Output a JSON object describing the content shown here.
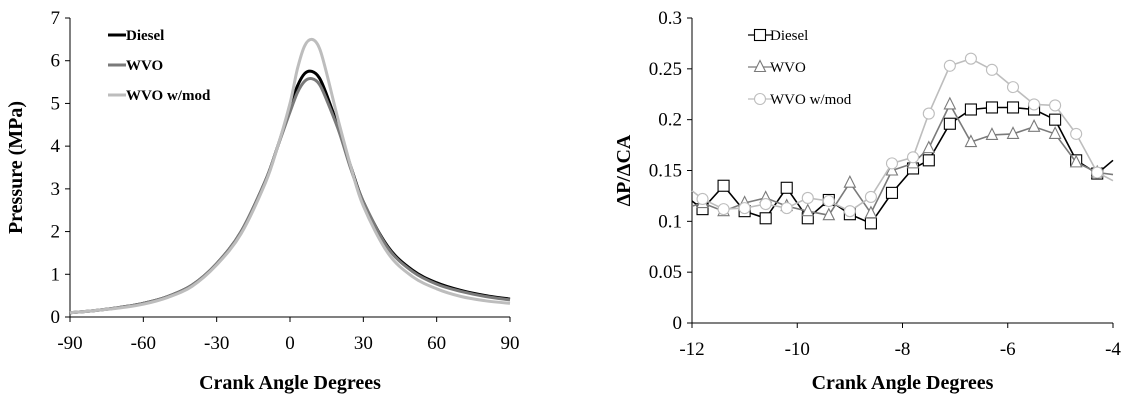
{
  "chart_data": [
    {
      "type": "line",
      "title": "",
      "xlabel": "Crank Angle Degrees",
      "ylabel": "Pressure (MPa)",
      "xlim": [
        -90,
        90
      ],
      "ylim": [
        0,
        7
      ],
      "xticks": [
        -90,
        -60,
        -30,
        0,
        30,
        60,
        90
      ],
      "yticks": [
        0,
        1,
        2,
        3,
        4,
        5,
        6,
        7
      ],
      "grid": false,
      "legend_position": "top-left",
      "series": [
        {
          "name": "Diesel",
          "color": "#000000",
          "x": [
            -90,
            -80,
            -70,
            -60,
            -50,
            -40,
            -30,
            -20,
            -10,
            -5,
            0,
            3,
            6,
            9,
            12,
            15,
            20,
            25,
            30,
            40,
            50,
            60,
            70,
            80,
            90
          ],
          "y": [
            0.1,
            0.15,
            0.22,
            0.32,
            0.48,
            0.75,
            1.25,
            2.0,
            3.2,
            4.0,
            4.9,
            5.4,
            5.7,
            5.75,
            5.6,
            5.2,
            4.4,
            3.5,
            2.7,
            1.65,
            1.1,
            0.8,
            0.62,
            0.5,
            0.42
          ]
        },
        {
          "name": "WVO",
          "color": "#7a7a7a",
          "x": [
            -90,
            -80,
            -70,
            -60,
            -50,
            -40,
            -30,
            -20,
            -10,
            -5,
            0,
            3,
            6,
            9,
            12,
            15,
            20,
            25,
            30,
            40,
            50,
            60,
            70,
            80,
            90
          ],
          "y": [
            0.1,
            0.15,
            0.22,
            0.32,
            0.48,
            0.75,
            1.25,
            2.0,
            3.2,
            4.0,
            4.8,
            5.25,
            5.52,
            5.58,
            5.45,
            5.08,
            4.35,
            3.45,
            2.7,
            1.62,
            1.07,
            0.77,
            0.6,
            0.48,
            0.4
          ]
        },
        {
          "name": "WVO w/mod",
          "color": "#bdbdbd",
          "x": [
            -90,
            -80,
            -70,
            -60,
            -50,
            -40,
            -30,
            -20,
            -10,
            -5,
            0,
            3,
            6,
            9,
            12,
            15,
            20,
            25,
            30,
            40,
            50,
            60,
            70,
            80,
            90
          ],
          "y": [
            0.1,
            0.15,
            0.21,
            0.3,
            0.46,
            0.72,
            1.22,
            1.95,
            3.15,
            4.0,
            5.0,
            5.8,
            6.35,
            6.5,
            6.3,
            5.7,
            4.55,
            3.5,
            2.6,
            1.5,
            0.95,
            0.66,
            0.48,
            0.38,
            0.32
          ]
        }
      ]
    },
    {
      "type": "line",
      "title": "",
      "xlabel": "Crank Angle Degrees",
      "ylabel": "ΔP/ΔCA",
      "xlim": [
        -12,
        -4
      ],
      "ylim": [
        0,
        0.3
      ],
      "xticks": [
        -12,
        -10,
        -8,
        -6,
        -4
      ],
      "yticks": [
        0,
        0.05,
        0.1,
        0.15,
        0.2,
        0.25,
        0.3
      ],
      "ytick_labels": [
        "0",
        "0.05",
        "0.1",
        "0.15",
        "0.2",
        "0.25",
        "0.3"
      ],
      "grid": false,
      "legend_position": "top-left",
      "series": [
        {
          "name": "Diesel",
          "color": "#000000",
          "marker": "square",
          "x": [
            -12.0,
            -11.8,
            -11.4,
            -11.0,
            -10.6,
            -10.2,
            -9.8,
            -9.4,
            -9.0,
            -8.6,
            -8.2,
            -7.8,
            -7.5,
            -7.1,
            -6.7,
            -6.3,
            -5.9,
            -5.5,
            -5.1,
            -4.7,
            -4.3,
            -4.0
          ],
          "y": [
            0.12,
            0.112,
            0.135,
            0.11,
            0.103,
            0.133,
            0.103,
            0.121,
            0.107,
            0.098,
            0.128,
            0.152,
            0.16,
            0.196,
            0.21,
            0.212,
            0.212,
            0.21,
            0.2,
            0.16,
            0.147,
            0.16
          ],
          "marker_index": [
            1,
            2,
            3,
            4,
            5,
            6,
            7,
            8,
            9,
            10,
            11,
            12,
            13,
            14,
            15,
            16,
            17,
            18,
            19,
            20
          ]
        },
        {
          "name": "WVO",
          "color": "#7a7a7a",
          "marker": "triangle",
          "x": [
            -12.0,
            -11.8,
            -11.4,
            -11.0,
            -10.6,
            -10.2,
            -9.8,
            -9.4,
            -9.0,
            -8.6,
            -8.2,
            -7.8,
            -7.5,
            -7.1,
            -6.7,
            -6.3,
            -5.9,
            -5.5,
            -5.1,
            -4.7,
            -4.3,
            -4.0
          ],
          "y": [
            0.115,
            0.118,
            0.11,
            0.118,
            0.123,
            0.115,
            0.11,
            0.106,
            0.138,
            0.108,
            0.15,
            0.157,
            0.172,
            0.215,
            0.178,
            0.185,
            0.186,
            0.193,
            0.186,
            0.158,
            0.148,
            0.146
          ],
          "marker_index": [
            1,
            2,
            3,
            4,
            5,
            6,
            7,
            8,
            9,
            10,
            11,
            12,
            13,
            14,
            15,
            16,
            17,
            18,
            19,
            20
          ]
        },
        {
          "name": "WVO w/mod",
          "color": "#bdbdbd",
          "marker": "circle",
          "x": [
            -12.0,
            -11.8,
            -11.4,
            -11.0,
            -10.6,
            -10.2,
            -9.8,
            -9.4,
            -9.0,
            -8.6,
            -8.2,
            -7.8,
            -7.5,
            -7.1,
            -6.7,
            -6.3,
            -5.9,
            -5.5,
            -5.1,
            -4.7,
            -4.3,
            -4.0
          ],
          "y": [
            0.13,
            0.122,
            0.112,
            0.113,
            0.117,
            0.113,
            0.123,
            0.12,
            0.11,
            0.124,
            0.157,
            0.163,
            0.206,
            0.253,
            0.26,
            0.249,
            0.232,
            0.215,
            0.214,
            0.186,
            0.148,
            0.14
          ],
          "marker_index": [
            1,
            2,
            3,
            4,
            5,
            6,
            7,
            8,
            9,
            10,
            11,
            12,
            13,
            14,
            15,
            16,
            17,
            18,
            19,
            20
          ]
        }
      ]
    }
  ]
}
